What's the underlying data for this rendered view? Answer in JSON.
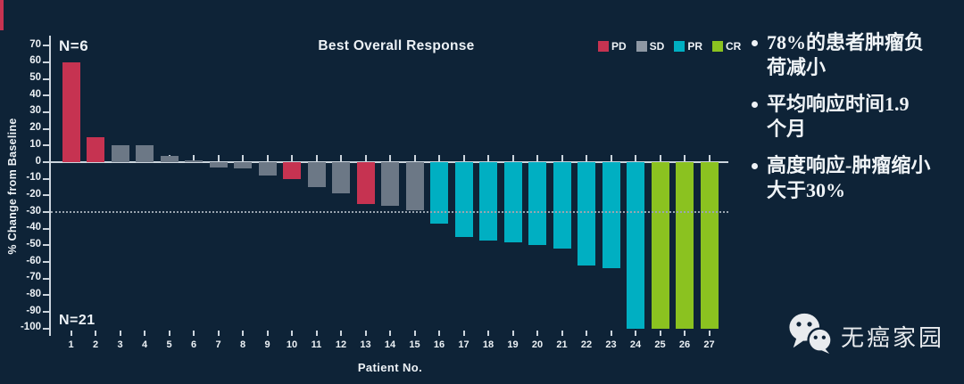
{
  "colors": {
    "background": "#0e2337",
    "pd": "#c63351",
    "sd": "#6c7886",
    "pr": "#00afc2",
    "cr": "#8bc220",
    "legend_sd": "#8e98a4",
    "axis": "#ccd5dd",
    "dashed_reference": "#9aa5b0",
    "text": "#edf2f6"
  },
  "chart_data": {
    "type": "bar",
    "title": "Best Overall Response",
    "xlabel": "Patient No.",
    "ylabel": "% Change from Baseline",
    "ylim": [
      -100,
      70
    ],
    "y_tick_step": 10,
    "reference_line": -30,
    "grid": false,
    "legend_position": "top-right",
    "group_counts": {
      "above_baseline": "N=6",
      "below_baseline": "N=21"
    },
    "legend": [
      {
        "label": "PD",
        "color_key": "pd"
      },
      {
        "label": "SD",
        "color_key": "sd"
      },
      {
        "label": "PR",
        "color_key": "pr"
      },
      {
        "label": "CR",
        "color_key": "cr"
      }
    ],
    "categories": [
      1,
      2,
      3,
      4,
      5,
      6,
      7,
      8,
      9,
      10,
      11,
      12,
      13,
      14,
      15,
      16,
      17,
      18,
      19,
      20,
      21,
      22,
      23,
      24,
      25,
      26,
      27
    ],
    "values": [
      60,
      15,
      10,
      10,
      4,
      1,
      -3,
      -4,
      -8,
      -10,
      -15,
      -19,
      -25,
      -26,
      -29,
      -37,
      -45,
      -47,
      -48,
      -50,
      -52,
      -62,
      -64,
      -100,
      -100,
      -100,
      -100
    ],
    "response_by_patient": [
      "PD",
      "PD",
      "SD",
      "SD",
      "SD",
      "SD",
      "SD",
      "SD",
      "SD",
      "PD",
      "SD",
      "SD",
      "PD",
      "SD",
      "SD",
      "PR",
      "PR",
      "PR",
      "PR",
      "PR",
      "PR",
      "PR",
      "PR",
      "PR",
      "CR",
      "CR",
      "CR"
    ]
  },
  "side_notes": {
    "bullets": [
      "78%的患者肿瘤负\n荷减小",
      "平均响应时间1.9\n个月",
      "高度响应-肿瘤缩小\n大于30%"
    ]
  },
  "footer": {
    "logo_text": "无癌家园",
    "logo_icon": "wechat-icon"
  }
}
